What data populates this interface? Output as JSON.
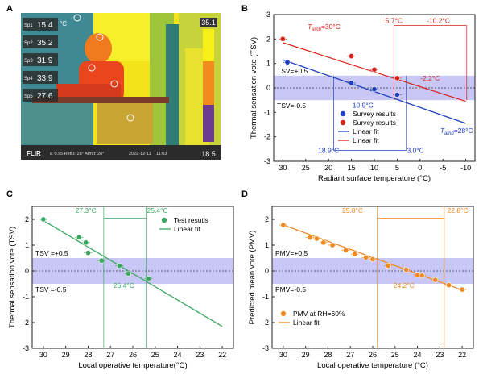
{
  "panels": {
    "A": {
      "letter": "A",
      "readouts": [
        {
          "label": "Sp1",
          "value": "15.4"
        },
        {
          "label": "Sp2",
          "value": "35.2"
        },
        {
          "label": "Sp3",
          "value": "31.9"
        },
        {
          "label": "Sp4",
          "value": "33.9"
        },
        {
          "label": "Sp5",
          "value": "27.6"
        }
      ],
      "unit": "°C",
      "scale_max": "35.1",
      "scale_min": "18.5",
      "brand": "FLIR",
      "status_line": "ε: 0.95  Refl.t: 28°  Atm.t: 28°",
      "date": "2022-12-11",
      "time": "11:03",
      "colors": {
        "hot": "#f7f01a",
        "warm": "#f28a1e",
        "cold": "#2d7c8a",
        "mid": "#c4d236"
      }
    },
    "B": {
      "letter": "B"
    },
    "C": {
      "letter": "C"
    },
    "D": {
      "letter": "D"
    }
  },
  "chart_data": [
    {
      "panel": "B",
      "type": "scatter",
      "xlabel": "Radiant surface temperature (°C)",
      "ylabel": "Thermal sensation vote (TSV)",
      "xlim": [
        32,
        -12
      ],
      "ylim": [
        -3,
        3
      ],
      "xticks": [
        30,
        25,
        20,
        15,
        10,
        5,
        0,
        -5,
        -10
      ],
      "yticks": [
        3,
        2,
        1,
        0,
        -1,
        -2,
        -3
      ],
      "comfort_band": [
        -0.5,
        0.5
      ],
      "band_labels": [
        "TSV=+0.5",
        "TSV=-0.5"
      ],
      "series": [
        {
          "name": "Survey results",
          "kind": "points",
          "color": "#1f3fbf",
          "points": [
            {
              "x": 29,
              "y": 1.05
            },
            {
              "x": 15,
              "y": 0.2
            },
            {
              "x": 10,
              "y": -0.05
            },
            {
              "x": 5,
              "y": -0.28
            }
          ]
        },
        {
          "name": "Survey results",
          "kind": "points",
          "color": "#d9241c",
          "points": [
            {
              "x": 30,
              "y": 2.0
            },
            {
              "x": 15,
              "y": 1.3
            },
            {
              "x": 10,
              "y": 0.75
            },
            {
              "x": 5,
              "y": 0.4
            }
          ]
        },
        {
          "name": "Linear fit",
          "kind": "line",
          "color": "#1f3fbf",
          "points": [
            {
              "x": 30,
              "y": 1.15
            },
            {
              "x": -10,
              "y": -1.45
            }
          ]
        },
        {
          "name": "Linear fit",
          "kind": "line",
          "color": "#d9241c",
          "points": [
            {
              "x": 30,
              "y": 1.85
            },
            {
              "x": -10,
              "y": -0.55
            }
          ]
        }
      ],
      "annotations": [
        {
          "text": "T",
          "sub": "amb",
          "rest": "=30°C",
          "color": "#d9241c",
          "x": 21,
          "y": 2.4
        },
        {
          "text": "T",
          "sub": "amb",
          "rest": "=28°C",
          "color": "#1f3fbf",
          "x": -8,
          "y": -1.85
        },
        {
          "text": "5.7°C",
          "color": "#d9241c",
          "x": 5.7,
          "y": 2.65
        },
        {
          "text": "-10.2°C",
          "color": "#d9241c",
          "x": -4,
          "y": 2.65
        },
        {
          "text": "-2.2°C",
          "color": "#d9241c",
          "x": -2.2,
          "y": 0.3
        },
        {
          "text": "10.9°C",
          "color": "#1f3fbf",
          "x": 12.5,
          "y": -0.8
        },
        {
          "text": "18.9°C",
          "color": "#1f3fbf",
          "x": 20,
          "y": -2.65
        },
        {
          "text": "3.0°C",
          "color": "#1f3fbf",
          "x": 1,
          "y": -2.65
        }
      ],
      "legend_position": "lower-center"
    },
    {
      "panel": "C",
      "type": "scatter",
      "xlabel": "Local operative temperature(°C)",
      "ylabel": "Thermal sensation vote (TSV)",
      "xlim": [
        30.5,
        21.5
      ],
      "ylim": [
        -3,
        2.5
      ],
      "xticks": [
        30,
        29,
        28,
        27,
        26,
        25,
        24,
        23,
        22
      ],
      "yticks": [
        2,
        1,
        0,
        -1,
        -2,
        -3
      ],
      "comfort_band": [
        -0.5,
        0.5
      ],
      "band_labels": [
        "TSV =+0.5",
        "TSV =-0.5"
      ],
      "series": [
        {
          "name": "Test resutls",
          "kind": "points",
          "color": "#3aa860",
          "points": [
            {
              "x": 30,
              "y": 2.0
            },
            {
              "x": 28.4,
              "y": 1.3
            },
            {
              "x": 28.1,
              "y": 1.1
            },
            {
              "x": 28.0,
              "y": 0.7
            },
            {
              "x": 27.4,
              "y": 0.4
            },
            {
              "x": 26.6,
              "y": 0.2
            },
            {
              "x": 26.2,
              "y": -0.1
            },
            {
              "x": 25.3,
              "y": -0.3
            }
          ]
        },
        {
          "name": "Linear fit",
          "kind": "line",
          "color": "#3aa860",
          "points": [
            {
              "x": 30,
              "y": 1.95
            },
            {
              "x": 22,
              "y": -2.15
            }
          ]
        }
      ],
      "annotations": [
        {
          "text": "27.3°C",
          "color": "#3aa860",
          "x": 28.1,
          "y": 2.25
        },
        {
          "text": "25.4°C",
          "color": "#3aa860",
          "x": 24.9,
          "y": 2.25
        },
        {
          "text": "26.4°C",
          "color": "#3aa860",
          "x": 26.4,
          "y": -0.65
        }
      ],
      "legend_position": "top-right"
    },
    {
      "panel": "D",
      "type": "scatter",
      "xlabel": "Local operative temperature (°C)",
      "ylabel": "Predicted mean vote (PMV)",
      "xlim": [
        30.5,
        21.5
      ],
      "ylim": [
        -3,
        2.5
      ],
      "xticks": [
        30,
        29,
        28,
        27,
        26,
        25,
        24,
        23,
        22
      ],
      "yticks": [
        2,
        1,
        0,
        -1,
        -2,
        -3
      ],
      "comfort_band": [
        -0.5,
        0.5
      ],
      "band_labels": [
        "PMV=+0.5",
        "PMV=-0.5"
      ],
      "series": [
        {
          "name": "PMV at RH=60%",
          "kind": "points",
          "color": "#f08a24",
          "points": [
            {
              "x": 30,
              "y": 1.78
            },
            {
              "x": 28.8,
              "y": 1.3
            },
            {
              "x": 28.5,
              "y": 1.25
            },
            {
              "x": 28.2,
              "y": 1.1
            },
            {
              "x": 27.8,
              "y": 1.0
            },
            {
              "x": 27.2,
              "y": 0.8
            },
            {
              "x": 26.8,
              "y": 0.65
            },
            {
              "x": 26.3,
              "y": 0.52
            },
            {
              "x": 26.0,
              "y": 0.45
            },
            {
              "x": 25.3,
              "y": 0.2
            },
            {
              "x": 24.5,
              "y": 0.05
            },
            {
              "x": 24.0,
              "y": -0.15
            },
            {
              "x": 23.8,
              "y": -0.18
            },
            {
              "x": 23.2,
              "y": -0.35
            },
            {
              "x": 22.6,
              "y": -0.55
            },
            {
              "x": 22.0,
              "y": -0.72
            }
          ]
        },
        {
          "name": "Linear fit",
          "kind": "line",
          "color": "#f08a24",
          "points": [
            {
              "x": 30,
              "y": 1.78
            },
            {
              "x": 22,
              "y": -0.74
            }
          ]
        }
      ],
      "annotations": [
        {
          "text": "25.8°C",
          "color": "#f08a24",
          "x": 26.9,
          "y": 2.25
        },
        {
          "text": "22.8°C",
          "color": "#f08a24",
          "x": 22.2,
          "y": 2.25
        },
        {
          "text": "24.2°C",
          "color": "#f08a24",
          "x": 24.6,
          "y": -0.65
        }
      ],
      "legend_position": "bottom-left"
    }
  ]
}
